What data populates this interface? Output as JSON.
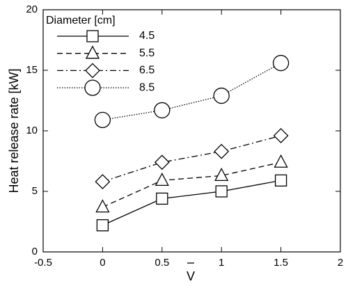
{
  "chart_data": {
    "type": "line",
    "x_label": "V",
    "y_label": "Heat release rate [kW]",
    "legend_title": "Diameter [cm]",
    "legend": "top-left",
    "x": [
      0,
      0.5,
      1,
      1.5
    ],
    "series": [
      {
        "name": "4.5",
        "color": "#000000",
        "marker": "square",
        "line_style": "solid",
        "values": [
          2.2,
          4.4,
          5.0,
          5.9
        ]
      },
      {
        "name": "5.5",
        "color": "#000000",
        "marker": "triangle",
        "line_style": "dashed",
        "values": [
          3.7,
          5.9,
          6.3,
          7.4
        ]
      },
      {
        "name": "6.5",
        "color": "#000000",
        "marker": "diamond",
        "line_style": "dashdot",
        "values": [
          5.8,
          7.4,
          8.3,
          9.6
        ]
      },
      {
        "name": "8.5",
        "color": "#000000",
        "marker": "circle",
        "line_style": "dotted",
        "values": [
          10.9,
          11.7,
          12.9,
          15.6
        ]
      }
    ],
    "xlim": [
      -0.5,
      2
    ],
    "xticks": [
      -0.5,
      0,
      0.5,
      1,
      1.5,
      2
    ],
    "ylim": [
      0,
      20
    ],
    "yticks": [
      0,
      5,
      10,
      15,
      20
    ],
    "grid": false
  }
}
